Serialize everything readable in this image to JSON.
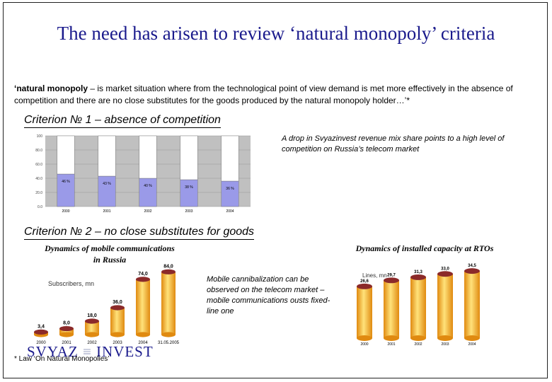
{
  "slide": {
    "title": "The need has arisen to review ‘natural monopoly’ criteria",
    "definition_term": "‘natural monopoly",
    "definition_text": " – is market situation where from the technological point of view demand is met more effectively in the absence of competition and there are no close substitutes for the goods produced by the natural monopoly holder…’*",
    "criterion1": "Criterion № 1 – absence of competition",
    "criterion1_note": "A drop in Svyazinvest revenue mix share points to a high level of competition on Russia’s telecom market",
    "criterion2": "Criterion № 2 – no close substitutes for goods",
    "mobile_chart_title": "Dynamics of mobile communications in Russia",
    "capacity_chart_title": "Dynamics of installed capacity at RTOs",
    "cannibalization_note": "Mobile cannibalization can be observed on the telecom market – mobile communications ousts fixed-line one",
    "footnote": "* Law ‘On Natural Monopolies’",
    "logo_left": "SVYAZ",
    "logo_right": "INVEST"
  },
  "colors": {
    "title": "#1a1a8c",
    "logo": "#1a1a8c",
    "bar_top": "#ffffff",
    "bar_bottom": "#9a9ae8",
    "plot_bg": "#c0c0c0",
    "cyl_light": "#ffe27a",
    "cyl_dark": "#e08a10",
    "cyl_cap": "#8b2a2a"
  },
  "chart_data": [
    {
      "type": "bar",
      "stacked": true,
      "categories": [
        "2000",
        "2001",
        "2002",
        "2003",
        "2004"
      ],
      "ylim": [
        0,
        100
      ],
      "yticks": [
        "0.0",
        "20.0",
        "40.0",
        "60.0",
        "80.0",
        "100"
      ],
      "series": [
        {
          "values": [
            46,
            43,
            40,
            38,
            36
          ],
          "labels": [
            "46 %",
            "43 %",
            "40 %",
            "38 %",
            "36 %"
          ]
        },
        {
          "values": [
            54,
            57,
            60,
            62,
            64
          ]
        }
      ]
    },
    {
      "type": "bar",
      "subtitle": "Subscribers, mn",
      "categories": [
        "2000",
        "2001",
        "2002",
        "2003",
        "2004",
        "31.05.2005"
      ],
      "values": [
        3.4,
        8.0,
        18.0,
        36.0,
        74.0,
        84.0
      ],
      "labels": [
        "3,4",
        "8,0",
        "18,0",
        "36,0",
        "74,0",
        "84,0"
      ],
      "ylim": [
        0,
        90
      ]
    },
    {
      "type": "bar",
      "subtitle": "Lines, mn",
      "categories": [
        "2000",
        "2001",
        "2002",
        "2003",
        "2004"
      ],
      "values": [
        26.6,
        29.7,
        31.3,
        33.0,
        34.5
      ],
      "labels": [
        "26,6",
        "29,7",
        "31,3",
        "33,0",
        "34,5"
      ],
      "ylim": [
        0,
        40
      ]
    }
  ]
}
